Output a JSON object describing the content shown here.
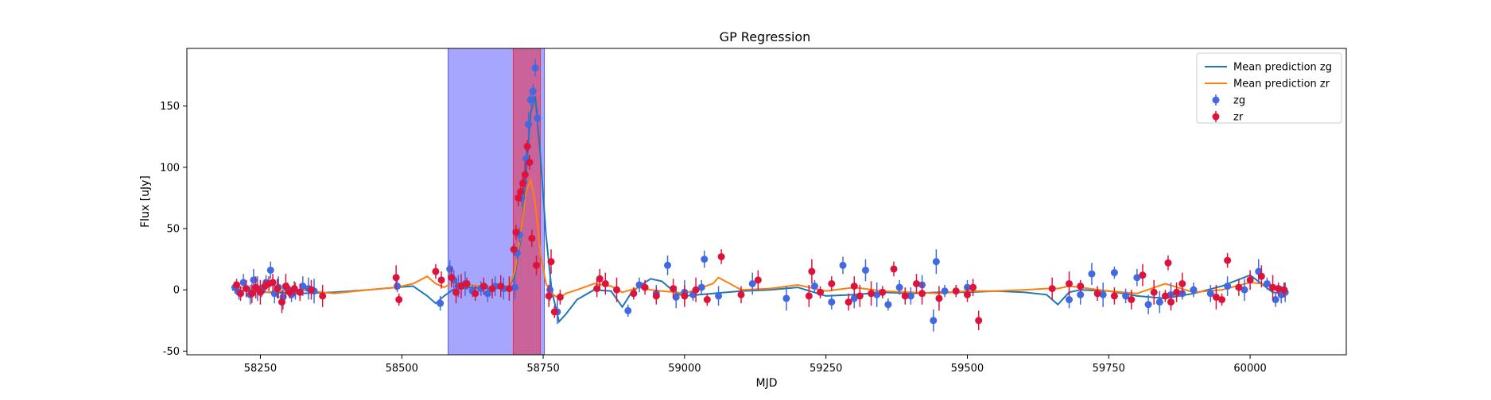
{
  "chart_data": {
    "type": "scatter",
    "title": "GP Regression",
    "xlabel": "MJD",
    "ylabel": "Flux [uJy]",
    "xlim": [
      58120,
      60170
    ],
    "ylim": [
      -53,
      197
    ],
    "x_ticks": [
      58250,
      58500,
      58750,
      59000,
      59250,
      59500,
      59750,
      60000
    ],
    "y_ticks": [
      -50,
      0,
      50,
      100,
      150
    ],
    "grid": false,
    "legend_position": "top-right",
    "shaded_regions": [
      {
        "x0": 58582,
        "x1": 58752,
        "color": "#0000ff",
        "opacity": 0.35
      },
      {
        "x0": 58697,
        "x1": 58745,
        "color": "#ff0000",
        "opacity": 0.4
      }
    ],
    "legend": [
      "Mean prediction zg",
      "Mean prediction zr",
      "zg",
      "zr"
    ],
    "lines": [
      {
        "name": "Mean prediction zg",
        "color": "#1f77b4",
        "x": [
          58200,
          58260,
          58320,
          58380,
          58440,
          58490,
          58520,
          58545,
          58560,
          58575,
          58590,
          58620,
          58660,
          58690,
          58700,
          58710,
          58720,
          58728,
          58736,
          58745,
          58755,
          58765,
          58778,
          58790,
          58810,
          58840,
          58870,
          58890,
          58905,
          58920,
          58940,
          58960,
          58985,
          59000,
          59050,
          59100,
          59150,
          59200,
          59250,
          59300,
          59350,
          59400,
          59450,
          59500,
          59550,
          59600,
          59640,
          59660,
          59680,
          59700,
          59750,
          59800,
          59850,
          59900,
          59950,
          60000,
          60020,
          60040,
          60060
        ],
        "y": [
          0,
          -2,
          -3,
          -2,
          0,
          2,
          3,
          -5,
          -11,
          -5,
          0,
          2,
          1,
          2,
          12,
          40,
          95,
          145,
          158,
          110,
          45,
          0,
          -26,
          -20,
          -8,
          0,
          -1,
          -14,
          -3,
          3,
          9,
          7,
          -3,
          -5,
          -3,
          -1,
          0,
          2,
          -5,
          -4,
          -2,
          -3,
          -2,
          -2,
          -1,
          -2,
          -4,
          -12,
          -2,
          0,
          -1,
          -5,
          -7,
          -3,
          3,
          12,
          5,
          -2,
          -3
        ]
      },
      {
        "name": "Mean prediction zr",
        "color": "#ff7f0e",
        "x": [
          58200,
          58260,
          58320,
          58380,
          58440,
          58490,
          58520,
          58545,
          58560,
          58575,
          58590,
          58620,
          58660,
          58690,
          58700,
          58710,
          58720,
          58728,
          58736,
          58745,
          58755,
          58765,
          58778,
          58790,
          58810,
          58840,
          58870,
          58890,
          58905,
          58920,
          58940,
          58960,
          58985,
          59000,
          59050,
          59060,
          59080,
          59100,
          59150,
          59200,
          59250,
          59300,
          59350,
          59400,
          59450,
          59500,
          59550,
          59600,
          59640,
          59660,
          59680,
          59700,
          59750,
          59800,
          59850,
          59900,
          59950,
          60000,
          60020,
          60040,
          60060
        ],
        "y": [
          3,
          -2,
          0,
          -3,
          0,
          2,
          5,
          11,
          5,
          2,
          6,
          4,
          2,
          3,
          15,
          45,
          80,
          90,
          70,
          30,
          5,
          -3,
          -7,
          -3,
          0,
          5,
          3,
          -2,
          0,
          2,
          0,
          -1,
          -2,
          -3,
          5,
          10,
          5,
          0,
          1,
          4,
          -1,
          2,
          -1,
          -2,
          -3,
          -1,
          -1,
          0,
          1,
          1,
          3,
          2,
          -1,
          -3,
          5,
          -2,
          0,
          6,
          5,
          3,
          1
        ]
      }
    ],
    "series": [
      {
        "name": "zg",
        "color": "#4169e1",
        "x": [
          58205,
          58212,
          58220,
          58232,
          58238,
          58245,
          58252,
          58260,
          58268,
          58275,
          58282,
          58290,
          58298,
          58305,
          58312,
          58325,
          58335,
          58345,
          58492,
          58568,
          58585,
          58592,
          58600,
          58612,
          58625,
          58640,
          58652,
          58665,
          58680,
          58700,
          58704,
          58708,
          58712,
          58716,
          58720,
          58724,
          58728,
          58732,
          58736,
          58740,
          58762,
          58775,
          58900,
          58920,
          58950,
          58970,
          58985,
          59000,
          59015,
          59030,
          59035,
          59060,
          59120,
          59180,
          59230,
          59260,
          59280,
          59300,
          59320,
          59340,
          59360,
          59380,
          59400,
          59420,
          59440,
          59445,
          59460,
          59500,
          59680,
          59700,
          59720,
          59740,
          59760,
          59780,
          59800,
          59820,
          59840,
          59860,
          59880,
          59900,
          59930,
          59960,
          59990,
          60015,
          60030,
          60045,
          60055,
          60062
        ],
        "y": [
          2,
          -2,
          6,
          -4,
          8,
          1,
          -1,
          6,
          16,
          -3,
          2,
          -6,
          1,
          -4,
          -1,
          3,
          1,
          -1,
          3,
          -11,
          17,
          8,
          3,
          5,
          -1,
          1,
          -3,
          3,
          1,
          2,
          30,
          45,
          75,
          88,
          107,
          135,
          155,
          162,
          181,
          140,
          0,
          -18,
          -17,
          4,
          -3,
          20,
          -6,
          -2,
          -4,
          2,
          25,
          -5,
          5,
          -7,
          3,
          -10,
          20,
          -7,
          16,
          -4,
          -12,
          2,
          -5,
          4,
          -25,
          23,
          -1,
          2,
          -8,
          -4,
          13,
          -4,
          14,
          -5,
          10,
          -12,
          -10,
          -4,
          -3,
          0,
          -3,
          3,
          0,
          15,
          5,
          -8,
          -4,
          -2
        ]
      },
      {
        "name": "zr",
        "color": "#dc143c",
        "x": [
          58208,
          58215,
          58225,
          58235,
          58242,
          58250,
          58258,
          58265,
          58272,
          58280,
          58288,
          58295,
          58302,
          58310,
          58320,
          58340,
          58360,
          58490,
          58495,
          58560,
          58570,
          58588,
          58596,
          58605,
          58615,
          58630,
          58645,
          58660,
          58675,
          58690,
          58698,
          58702,
          58706,
          58710,
          58714,
          58718,
          58722,
          58726,
          58730,
          58738,
          58760,
          58764,
          58770,
          58780,
          58845,
          58850,
          58860,
          58880,
          58910,
          58930,
          58950,
          58980,
          59000,
          59020,
          59040,
          59065,
          59100,
          59130,
          59220,
          59225,
          59240,
          59260,
          59290,
          59300,
          59310,
          59330,
          59350,
          59370,
          59390,
          59410,
          59420,
          59450,
          59480,
          59500,
          59510,
          59520,
          59650,
          59680,
          59700,
          59730,
          59760,
          59790,
          59810,
          59830,
          59850,
          59855,
          59860,
          59870,
          59880,
          59940,
          59950,
          59960,
          59980,
          60000,
          60020,
          60040,
          60050,
          60060
        ],
        "y": [
          4,
          -3,
          1,
          -3,
          2,
          -2,
          3,
          5,
          6,
          1,
          -10,
          3,
          -2,
          1,
          -2,
          0,
          -5,
          10,
          -8,
          15,
          8,
          10,
          -2,
          3,
          5,
          -3,
          3,
          1,
          3,
          1,
          33,
          47,
          75,
          80,
          87,
          94,
          117,
          104,
          42,
          20,
          -5,
          23,
          -18,
          -6,
          1,
          9,
          5,
          0,
          -3,
          2,
          -5,
          1,
          -5,
          0,
          -8,
          27,
          -4,
          8,
          -5,
          15,
          -2,
          5,
          -10,
          3,
          -5,
          -3,
          -2,
          17,
          -5,
          5,
          -3,
          -7,
          -1,
          -4,
          2,
          -25,
          1,
          5,
          3,
          -3,
          -5,
          -8,
          12,
          -2,
          -5,
          22,
          -10,
          -2,
          5,
          -6,
          -8,
          24,
          2,
          8,
          11,
          2,
          1,
          0
        ]
      }
    ]
  }
}
